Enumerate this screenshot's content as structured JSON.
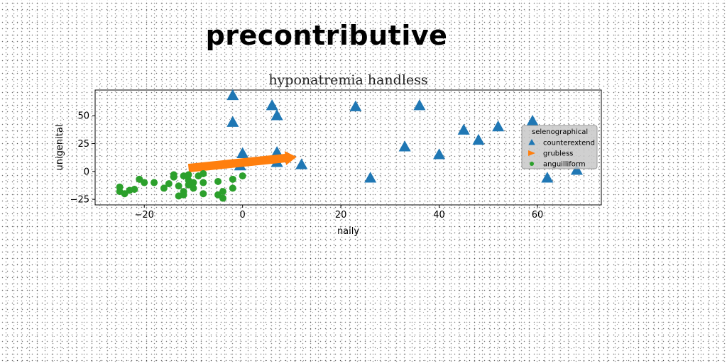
{
  "figure": {
    "suptitle": "precontributive"
  },
  "chart_data": {
    "type": "scatter",
    "title": "hyponatremia handless",
    "xlabel": "naily",
    "ylabel": "unigenital",
    "xlim": [
      -30,
      73
    ],
    "ylim": [
      -30,
      73
    ],
    "xticks": [
      -20,
      0,
      20,
      40,
      60
    ],
    "yticks": [
      -25,
      0,
      25,
      50
    ],
    "grid": false,
    "legend": {
      "title": "selenographical",
      "placement": "center-right"
    },
    "series": [
      {
        "name": "counterextend",
        "marker": "triangle",
        "color": "#1f77b4",
        "points": [
          [
            -2,
            68
          ],
          [
            -2,
            44
          ],
          [
            6,
            59
          ],
          [
            7,
            50
          ],
          [
            0,
            16
          ],
          [
            -0.5,
            5
          ],
          [
            7,
            17
          ],
          [
            7,
            8
          ],
          [
            12,
            6
          ],
          [
            23,
            58
          ],
          [
            26,
            -6
          ],
          [
            33,
            22
          ],
          [
            36,
            59
          ],
          [
            40,
            15
          ],
          [
            45,
            37
          ],
          [
            48,
            28
          ],
          [
            52,
            40
          ],
          [
            59,
            45
          ],
          [
            62,
            -6
          ],
          [
            68,
            1
          ]
        ]
      },
      {
        "name": "grubless",
        "marker": "arrow",
        "color": "#ff7f0e",
        "arrow": {
          "from": [
            -11,
            3
          ],
          "to": [
            11,
            13
          ]
        }
      },
      {
        "name": "anguilliform",
        "marker": "circle",
        "color": "#2ca02c",
        "points": [
          [
            -25,
            -14
          ],
          [
            -25,
            -18
          ],
          [
            -24,
            -20
          ],
          [
            -23,
            -17
          ],
          [
            -22,
            -16
          ],
          [
            -21,
            -7
          ],
          [
            -20,
            -10
          ],
          [
            -18,
            -10
          ],
          [
            -16,
            -15
          ],
          [
            -15,
            -11
          ],
          [
            -14,
            -5
          ],
          [
            -14,
            -3
          ],
          [
            -13,
            -13
          ],
          [
            -13,
            -22
          ],
          [
            -12,
            -21
          ],
          [
            -12,
            -18
          ],
          [
            -12,
            -4
          ],
          [
            -11,
            -8
          ],
          [
            -11,
            -12
          ],
          [
            -10,
            -15
          ],
          [
            -10,
            -10
          ],
          [
            -11,
            -3
          ],
          [
            -9,
            -4
          ],
          [
            -8,
            -10
          ],
          [
            -8,
            -2
          ],
          [
            -8,
            -20
          ],
          [
            -5,
            -9
          ],
          [
            -4,
            -18
          ],
          [
            -4,
            -24
          ],
          [
            -2,
            -7
          ],
          [
            -2,
            -15
          ],
          [
            0,
            -4
          ],
          [
            -5,
            -21
          ]
        ]
      }
    ]
  }
}
